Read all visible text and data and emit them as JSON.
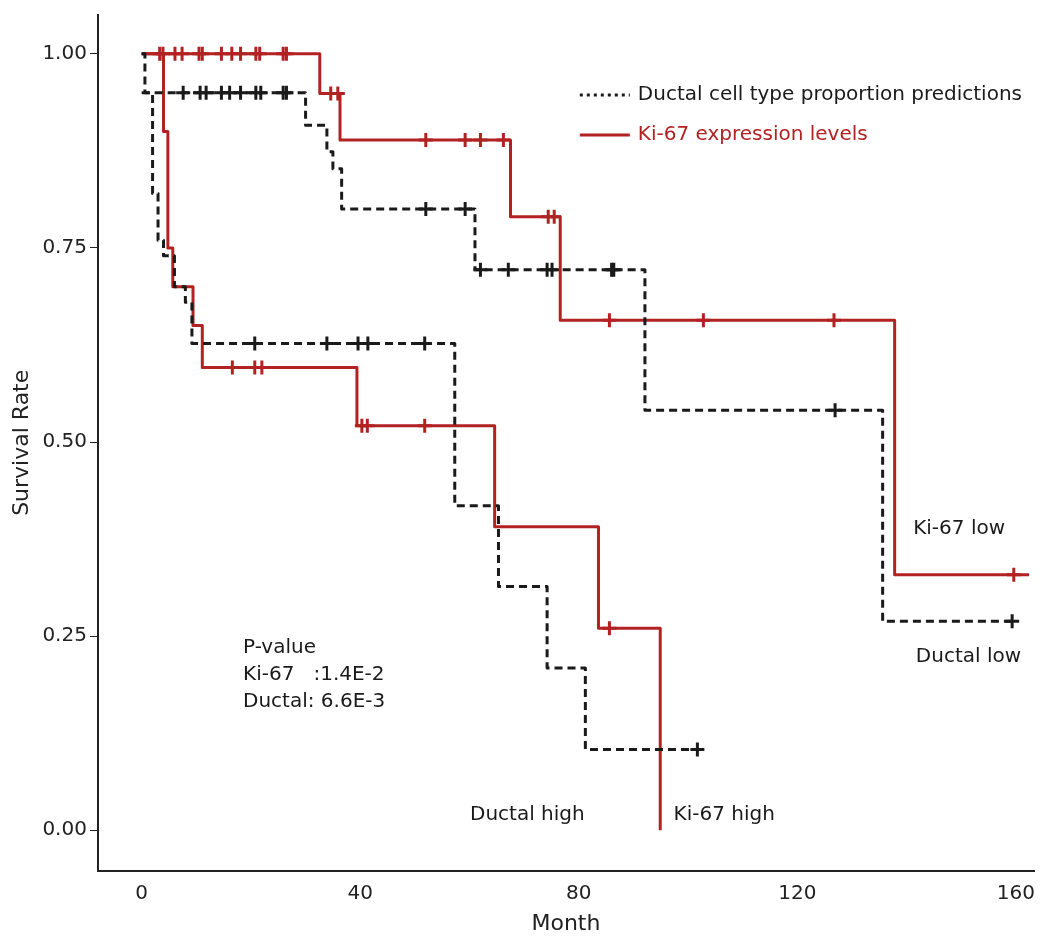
{
  "chart_data": {
    "type": "step",
    "xlabel": "Month",
    "ylabel": "Survival Rate",
    "xlim": [
      -8,
      163.3
    ],
    "ylim": [
      -0.052,
      1.05
    ],
    "xticks": [
      0,
      40,
      80,
      120,
      160
    ],
    "yticks": [
      {
        "value": 0,
        "label": "0.00"
      },
      {
        "value": 0.25,
        "label": "0.25"
      },
      {
        "value": 0.5,
        "label": "0.50"
      },
      {
        "value": 0.75,
        "label": "0.75"
      },
      {
        "value": 1,
        "label": "1.00"
      }
    ],
    "grid": false,
    "legend": "top right",
    "series": [
      {
        "name": "Ductal cell type proportion predictions",
        "color": "#1a1a1a",
        "line_style": "dashed",
        "marker": "none",
        "x": [
          0,
          30,
          33.9,
          35,
          36.6,
          61,
          92.1,
          135.6,
          159.8
        ],
        "values": [
          0.95,
          0.908,
          0.874,
          0.852,
          0.8,
          0.722,
          0.541,
          0.269,
          0.269
        ]
      },
      {
        "color": "#1a1a1a",
        "line_style": "dashed",
        "marker": "none",
        "x": [
          0,
          0.6,
          2,
          3,
          4,
          6,
          8,
          9.2,
          57.3,
          65.3,
          74.2,
          81.2,
          101.7
        ],
        "values": [
          1,
          0.95,
          0.82,
          0.76,
          0.74,
          0.7,
          0.68,
          0.627,
          0.418,
          0.314,
          0.209,
          0.104,
          0.104
        ]
      },
      {
        "name": "Ki-67 expression levels",
        "color": "#b22222",
        "line_style": "solid",
        "marker": "none",
        "x": [
          0,
          32.6,
          36.3,
          67.5,
          76.6,
          137.8,
          162.4
        ],
        "values": [
          1,
          0.949,
          0.889,
          0.79,
          0.657,
          0.329,
          0.329
        ]
      },
      {
        "color": "#b22222",
        "line_style": "solid",
        "marker": "none",
        "x": [
          0,
          4,
          4.8,
          5.7,
          9.4,
          11.1,
          39.4,
          64.6,
          83.6,
          94.9
        ],
        "values": [
          1,
          0.9,
          0.75,
          0.7,
          0.65,
          0.596,
          0.521,
          0.391,
          0.26,
          0
        ]
      },
      {
        "type": "scatter",
        "color": "#1a1a1a",
        "marker": "cross",
        "x": [
          7.6,
          10.7,
          11.8,
          14.6,
          16.1,
          18.1,
          20.9,
          21.8,
          25.9,
          26.5,
          52,
          59.2,
          62,
          67.1,
          74.2,
          75.1,
          86,
          86.4,
          126.9,
          159.3
        ],
        "values": [
          0.95,
          0.95,
          0.95,
          0.95,
          0.95,
          0.95,
          0.95,
          0.95,
          0.95,
          0.95,
          0.8,
          0.8,
          0.722,
          0.722,
          0.722,
          0.722,
          0.722,
          0.722,
          0.541,
          0.269
        ]
      },
      {
        "type": "scatter",
        "color": "#1a1a1a",
        "marker": "cross",
        "x": [
          20.7,
          33.9,
          39.6,
          41.4,
          51.8,
          101.7
        ],
        "values": [
          0.627,
          0.627,
          0.627,
          0.627,
          0.627,
          0.104
        ]
      },
      {
        "type": "scatter",
        "color": "#b22222",
        "marker": "cross",
        "x": [
          3.3,
          3.9,
          6.1,
          7.4,
          10.5,
          11.1,
          14.6,
          16.5,
          18.1,
          20.9,
          21.6,
          25.9,
          26.5,
          34.6,
          35.9,
          52,
          59.2,
          62,
          66.2,
          74.4,
          75.5,
          85.6,
          102.8,
          126.7,
          159.6
        ],
        "values": [
          1,
          1,
          1,
          1,
          1,
          1,
          1,
          1,
          1,
          1,
          1,
          1,
          1,
          0.949,
          0.949,
          0.889,
          0.889,
          0.889,
          0.889,
          0.79,
          0.79,
          0.657,
          0.657,
          0.657,
          0.329
        ]
      },
      {
        "type": "scatter",
        "color": "#b22222",
        "marker": "cross",
        "x": [
          16.6,
          20.7,
          22,
          40.3,
          41.3,
          51.8,
          85.6
        ],
        "values": [
          0.596,
          0.596,
          0.596,
          0.521,
          0.521,
          0.521,
          0.26
        ]
      }
    ],
    "annotations": [
      "Ki-67 low",
      "Ductal low",
      "Ductal high",
      "Ki-67 high",
      "P-value\nKi-67   :1.4E-2\nDuctal: 6.6E-3"
    ]
  }
}
